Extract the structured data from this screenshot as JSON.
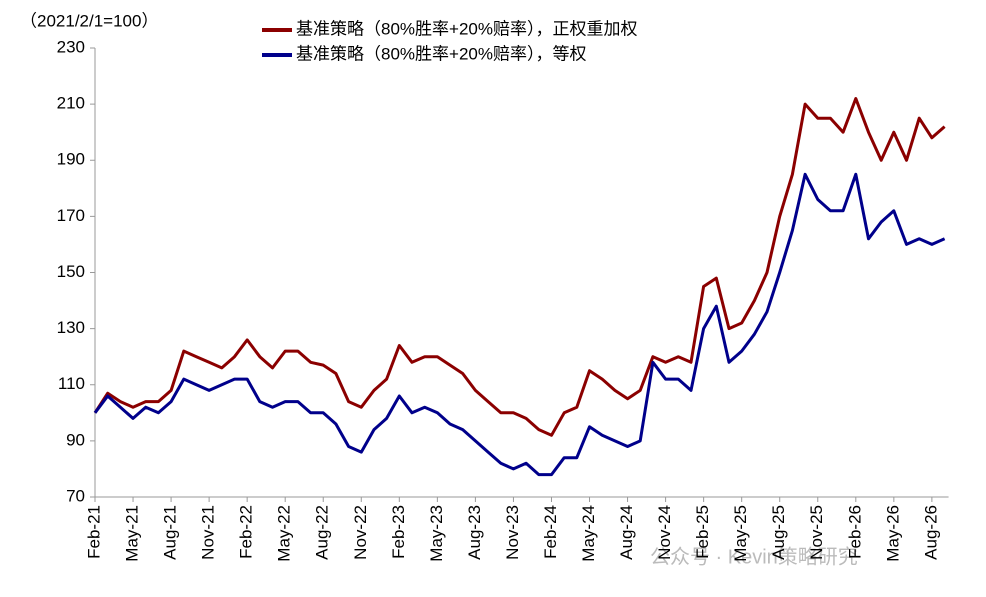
{
  "chart_data": {
    "type": "line",
    "subtitle": "（2021/2/1=100）",
    "watermark": "公众号 · Kevin策略研究",
    "categories": [
      "Feb-21",
      null,
      null,
      "May-21",
      null,
      null,
      "Aug-21",
      null,
      null,
      "Nov-21",
      null,
      null,
      "Feb-22",
      null,
      null,
      "May-22",
      null,
      null,
      "Aug-22",
      null,
      null,
      "Nov-22",
      null,
      null,
      "Feb-23",
      null,
      null,
      "May-23",
      null,
      null,
      "Aug-23",
      null,
      null,
      "Nov-23",
      null,
      null,
      "Feb-24",
      null,
      null,
      "May-24",
      null,
      null,
      "Aug-24",
      null,
      null,
      "Nov-24",
      null,
      null,
      "Feb-25",
      null,
      null,
      "May-25",
      null,
      null,
      "Aug-25",
      null,
      null,
      "Nov-25",
      null,
      null,
      "Feb-26",
      null,
      null,
      "May-26",
      null,
      null,
      "Aug-26",
      null
    ],
    "series": [
      {
        "name": "基准策略（80%胜率+20%赔率），正权重加权",
        "color": "#8b0000",
        "values": [
          100,
          107,
          104,
          102,
          104,
          104,
          108,
          122,
          120,
          118,
          116,
          120,
          126,
          120,
          116,
          122,
          122,
          118,
          117,
          114,
          104,
          102,
          108,
          112,
          124,
          118,
          120,
          120,
          117,
          114,
          108,
          104,
          100,
          100,
          98,
          94,
          92,
          100,
          102,
          115,
          112,
          108,
          105,
          108,
          120,
          118,
          120,
          118,
          145,
          148,
          130,
          132,
          140,
          150,
          170,
          185,
          210,
          205,
          205,
          200,
          212,
          200,
          190,
          200,
          190,
          205,
          198,
          202
        ]
      },
      {
        "name": "基准策略（80%胜率+20%赔率），等权",
        "color": "#00008b",
        "values": [
          100,
          106,
          102,
          98,
          102,
          100,
          104,
          112,
          110,
          108,
          110,
          112,
          112,
          104,
          102,
          104,
          104,
          100,
          100,
          96,
          88,
          86,
          94,
          98,
          106,
          100,
          102,
          100,
          96,
          94,
          90,
          86,
          82,
          80,
          82,
          78,
          78,
          84,
          84,
          95,
          92,
          90,
          88,
          90,
          118,
          112,
          112,
          108,
          130,
          138,
          118,
          122,
          128,
          136,
          150,
          165,
          185,
          176,
          172,
          172,
          185,
          162,
          168,
          172,
          160,
          162,
          160,
          162
        ]
      }
    ],
    "ylim": [
      70,
      230
    ],
    "yticks": [
      70,
      90,
      110,
      130,
      150,
      170,
      190,
      210,
      230
    ]
  }
}
